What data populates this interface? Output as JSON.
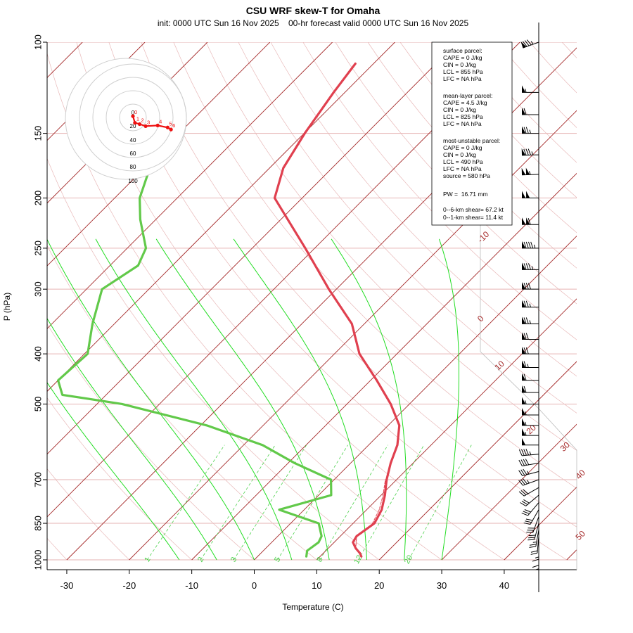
{
  "chart_data": {
    "type": "skew-t",
    "title": "CSU WRF skew-T for Omaha",
    "subtitle": "init: 0000 UTC Sun 16 Nov 2025    00-hr forecast valid 0000 UTC Sun 16 Nov 2025",
    "xlabel": "Temperature (C)",
    "ylabel": "P (hPa)",
    "xlim": [
      -33,
      51
    ],
    "ylim": [
      1000,
      100
    ],
    "x_ticks": [
      "-30",
      "-20",
      "-10",
      "0",
      "10",
      "20",
      "30",
      "40"
    ],
    "y_ticks": [
      "100",
      "150",
      "200",
      "250",
      "300",
      "400",
      "500",
      "700",
      "850",
      "1000"
    ],
    "isotherm_labels": [
      "-10",
      "0",
      "10",
      "20",
      "30",
      "40",
      "50"
    ],
    "mixing_ratio_labels": [
      "1",
      "2",
      "3",
      "5",
      "8",
      "12",
      "20"
    ],
    "colors": {
      "temperature": "#e0404f",
      "dewpoint": "#62c94a",
      "isotherm": "#a52a2a",
      "dry_adiabat": "#e8b8b8",
      "moist_adiabat": "#22dd22",
      "mixing_ratio": "#4ad14a",
      "hodograph": "#ee1111"
    },
    "temperature_profile": [
      {
        "p": 985,
        "t": 16.6
      },
      {
        "p": 970,
        "t": 15.8
      },
      {
        "p": 950,
        "t": 14.4
      },
      {
        "p": 925,
        "t": 13.0
      },
      {
        "p": 900,
        "t": 12.6
      },
      {
        "p": 875,
        "t": 13.0
      },
      {
        "p": 850,
        "t": 13.4
      },
      {
        "p": 800,
        "t": 12.4
      },
      {
        "p": 750,
        "t": 10.6
      },
      {
        "p": 700,
        "t": 8.4
      },
      {
        "p": 650,
        "t": 6.4
      },
      {
        "p": 600,
        "t": 4.6
      },
      {
        "p": 550,
        "t": 1.8
      },
      {
        "p": 500,
        "t": -3.0
      },
      {
        "p": 450,
        "t": -9.0
      },
      {
        "p": 400,
        "t": -16.0
      },
      {
        "p": 350,
        "t": -22.0
      },
      {
        "p": 300,
        "t": -31.2
      },
      {
        "p": 250,
        "t": -41.5
      },
      {
        "p": 200,
        "t": -54.4
      },
      {
        "p": 175,
        "t": -57.8
      },
      {
        "p": 150,
        "t": -59.9
      },
      {
        "p": 125,
        "t": -61.8
      },
      {
        "p": 110,
        "t": -62.9
      }
    ],
    "dewpoint_profile": [
      {
        "p": 985,
        "t": 7.8
      },
      {
        "p": 960,
        "t": 7.0
      },
      {
        "p": 925,
        "t": 7.5
      },
      {
        "p": 900,
        "t": 7.0
      },
      {
        "p": 850,
        "t": 4.5
      },
      {
        "p": 800,
        "t": -4.0
      },
      {
        "p": 750,
        "t": 2.0
      },
      {
        "p": 700,
        "t": -0.5
      },
      {
        "p": 650,
        "t": -9.0
      },
      {
        "p": 600,
        "t": -17.0
      },
      {
        "p": 550,
        "t": -29.0
      },
      {
        "p": 500,
        "t": -46.0
      },
      {
        "p": 480,
        "t": -57.0
      },
      {
        "p": 450,
        "t": -60.0
      },
      {
        "p": 400,
        "t": -59.5
      },
      {
        "p": 350,
        "t": -63.5
      },
      {
        "p": 300,
        "t": -67.5
      },
      {
        "p": 270,
        "t": -65.5
      },
      {
        "p": 250,
        "t": -67.0
      },
      {
        "p": 220,
        "t": -72.5
      },
      {
        "p": 200,
        "t": -76.0
      },
      {
        "p": 180,
        "t": -78.5
      },
      {
        "p": 170,
        "t": -79.0
      }
    ],
    "parcel_trace": [
      {
        "p": 985,
        "t": 16.6
      },
      {
        "p": 950,
        "t": 14.4
      },
      {
        "p": 900,
        "t": 12.6
      },
      {
        "p": 855,
        "t": 13.2
      },
      {
        "p": 800,
        "t": 12.0
      },
      {
        "p": 750,
        "t": 10.3
      },
      {
        "p": 700,
        "t": 8.2
      }
    ],
    "hodograph": {
      "ring_labels": [
        "0",
        "20",
        "40",
        "60",
        "80",
        "100"
      ],
      "point_labels": [
        "0",
        "1",
        "2",
        "3",
        "4",
        "5",
        "6"
      ],
      "points": [
        {
          "u": 0,
          "v": 2
        },
        {
          "u": 3,
          "v": -8
        },
        {
          "u": 10,
          "v": -10
        },
        {
          "u": 19,
          "v": -13
        },
        {
          "u": 37,
          "v": -12
        },
        {
          "u": 52,
          "v": -15
        },
        {
          "u": 57,
          "v": -18
        }
      ]
    },
    "parcel_info": {
      "surface": [
        "surface parcel:",
        "CAPE = 0 J/kg",
        "CIN = 0 J/kg",
        "LCL = 855 hPa",
        "LFC = NA hPa"
      ],
      "mean_layer": [
        "mean-layer parcel:",
        "CAPE = 4.5 J/kg",
        "CIN = 0 J/kg",
        "LCL = 825 hPa",
        "LFC = NA hPa"
      ],
      "most_unstable": [
        "most-unstable parcel:",
        "CAPE = 0 J/kg",
        "CIN = 0 J/kg",
        "LCL = 490 hPa",
        "LFC = NA hPa",
        "source = 580 hPa"
      ],
      "pw": "PW =  16.71 mm",
      "shear": [
        "0--6-km shear= 67.2 kt",
        "0--1-km shear= 11.4 kt"
      ]
    },
    "wind_barbs": [
      {
        "p": 100,
        "spd": 85,
        "dir": 250
      },
      {
        "p": 125,
        "spd": 55,
        "dir": 270
      },
      {
        "p": 138,
        "spd": 60,
        "dir": 270
      },
      {
        "p": 150,
        "spd": 75,
        "dir": 270
      },
      {
        "p": 165,
        "spd": 85,
        "dir": 268
      },
      {
        "p": 180,
        "spd": 105,
        "dir": 268
      },
      {
        "p": 200,
        "spd": 100,
        "dir": 270
      },
      {
        "p": 225,
        "spd": 110,
        "dir": 270
      },
      {
        "p": 250,
        "spd": 95,
        "dir": 270
      },
      {
        "p": 275,
        "spd": 85,
        "dir": 270
      },
      {
        "p": 300,
        "spd": 80,
        "dir": 270
      },
      {
        "p": 325,
        "spd": 75,
        "dir": 270
      },
      {
        "p": 350,
        "spd": 75,
        "dir": 270
      },
      {
        "p": 375,
        "spd": 70,
        "dir": 270
      },
      {
        "p": 400,
        "spd": 70,
        "dir": 270
      },
      {
        "p": 425,
        "spd": 65,
        "dir": 270
      },
      {
        "p": 450,
        "spd": 60,
        "dir": 270
      },
      {
        "p": 475,
        "spd": 60,
        "dir": 270
      },
      {
        "p": 500,
        "spd": 55,
        "dir": 270
      },
      {
        "p": 525,
        "spd": 55,
        "dir": 270
      },
      {
        "p": 550,
        "spd": 55,
        "dir": 270
      },
      {
        "p": 575,
        "spd": 55,
        "dir": 270
      },
      {
        "p": 600,
        "spd": 50,
        "dir": 270
      },
      {
        "p": 625,
        "spd": 45,
        "dir": 265
      },
      {
        "p": 650,
        "spd": 40,
        "dir": 260
      },
      {
        "p": 675,
        "spd": 35,
        "dir": 255
      },
      {
        "p": 700,
        "spd": 35,
        "dir": 250
      },
      {
        "p": 725,
        "spd": 30,
        "dir": 240
      },
      {
        "p": 750,
        "spd": 30,
        "dir": 230
      },
      {
        "p": 775,
        "spd": 30,
        "dir": 220
      },
      {
        "p": 800,
        "spd": 30,
        "dir": 210
      },
      {
        "p": 825,
        "spd": 30,
        "dir": 200
      },
      {
        "p": 850,
        "spd": 30,
        "dir": 195
      },
      {
        "p": 875,
        "spd": 25,
        "dir": 190
      },
      {
        "p": 900,
        "spd": 20,
        "dir": 185
      },
      {
        "p": 925,
        "spd": 15,
        "dir": 180
      },
      {
        "p": 950,
        "spd": 10,
        "dir": 180
      },
      {
        "p": 975,
        "spd": 5,
        "dir": 180
      }
    ]
  }
}
